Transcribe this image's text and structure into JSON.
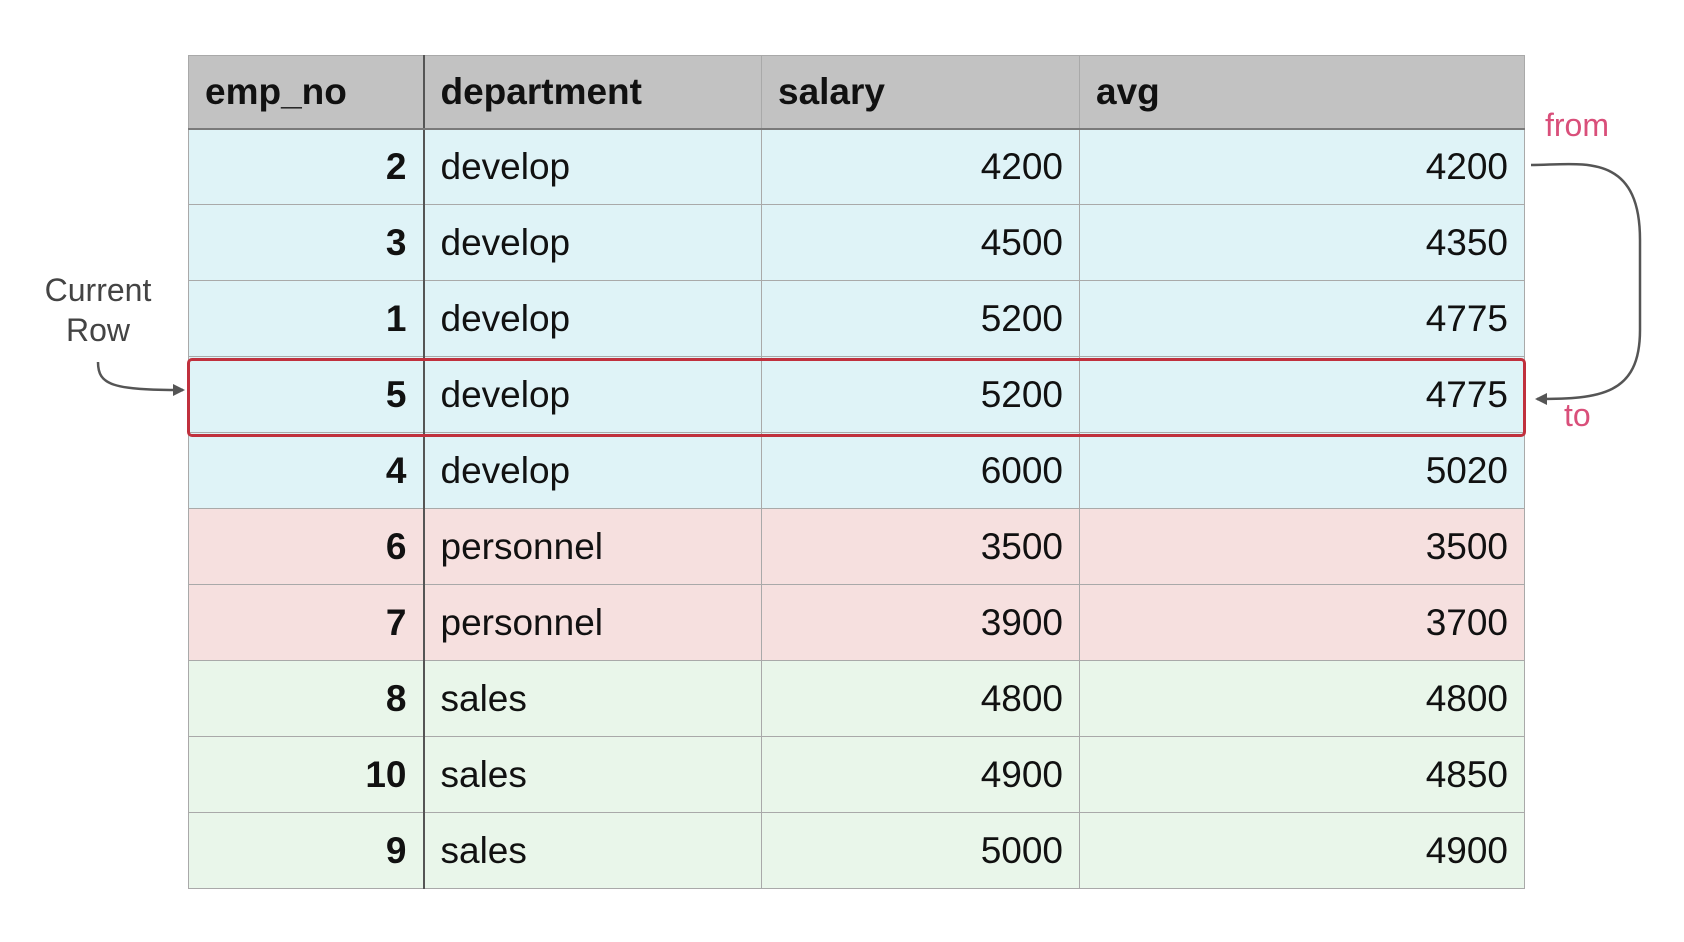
{
  "table": {
    "columns": [
      "emp_no",
      "department",
      "salary",
      "avg"
    ],
    "rows": [
      {
        "emp_no": "2",
        "department": "develop",
        "salary": "4200",
        "avg": "4200",
        "group": "develop"
      },
      {
        "emp_no": "3",
        "department": "develop",
        "salary": "4500",
        "avg": "4350",
        "group": "develop"
      },
      {
        "emp_no": "1",
        "department": "develop",
        "salary": "5200",
        "avg": "4775",
        "group": "develop"
      },
      {
        "emp_no": "5",
        "department": "develop",
        "salary": "5200",
        "avg": "4775",
        "group": "develop"
      },
      {
        "emp_no": "4",
        "department": "develop",
        "salary": "6000",
        "avg": "5020",
        "group": "develop"
      },
      {
        "emp_no": "6",
        "department": "personnel",
        "salary": "3500",
        "avg": "3500",
        "group": "personnel"
      },
      {
        "emp_no": "7",
        "department": "personnel",
        "salary": "3900",
        "avg": "3700",
        "group": "personnel"
      },
      {
        "emp_no": "8",
        "department": "sales",
        "salary": "4800",
        "avg": "4800",
        "group": "sales"
      },
      {
        "emp_no": "10",
        "department": "sales",
        "salary": "4900",
        "avg": "4850",
        "group": "sales"
      },
      {
        "emp_no": "9",
        "department": "sales",
        "salary": "5000",
        "avg": "4900",
        "group": "sales"
      }
    ]
  },
  "annotations": {
    "current_row_line1": "Current",
    "current_row_line2": "Row",
    "from": "from",
    "to": "to"
  },
  "colors": {
    "develop": "#dff3f7",
    "personnel": "#f6e0df",
    "sales": "#e9f6ea",
    "highlight_border": "#c0303d",
    "annotation_pink": "#d94f7a"
  }
}
